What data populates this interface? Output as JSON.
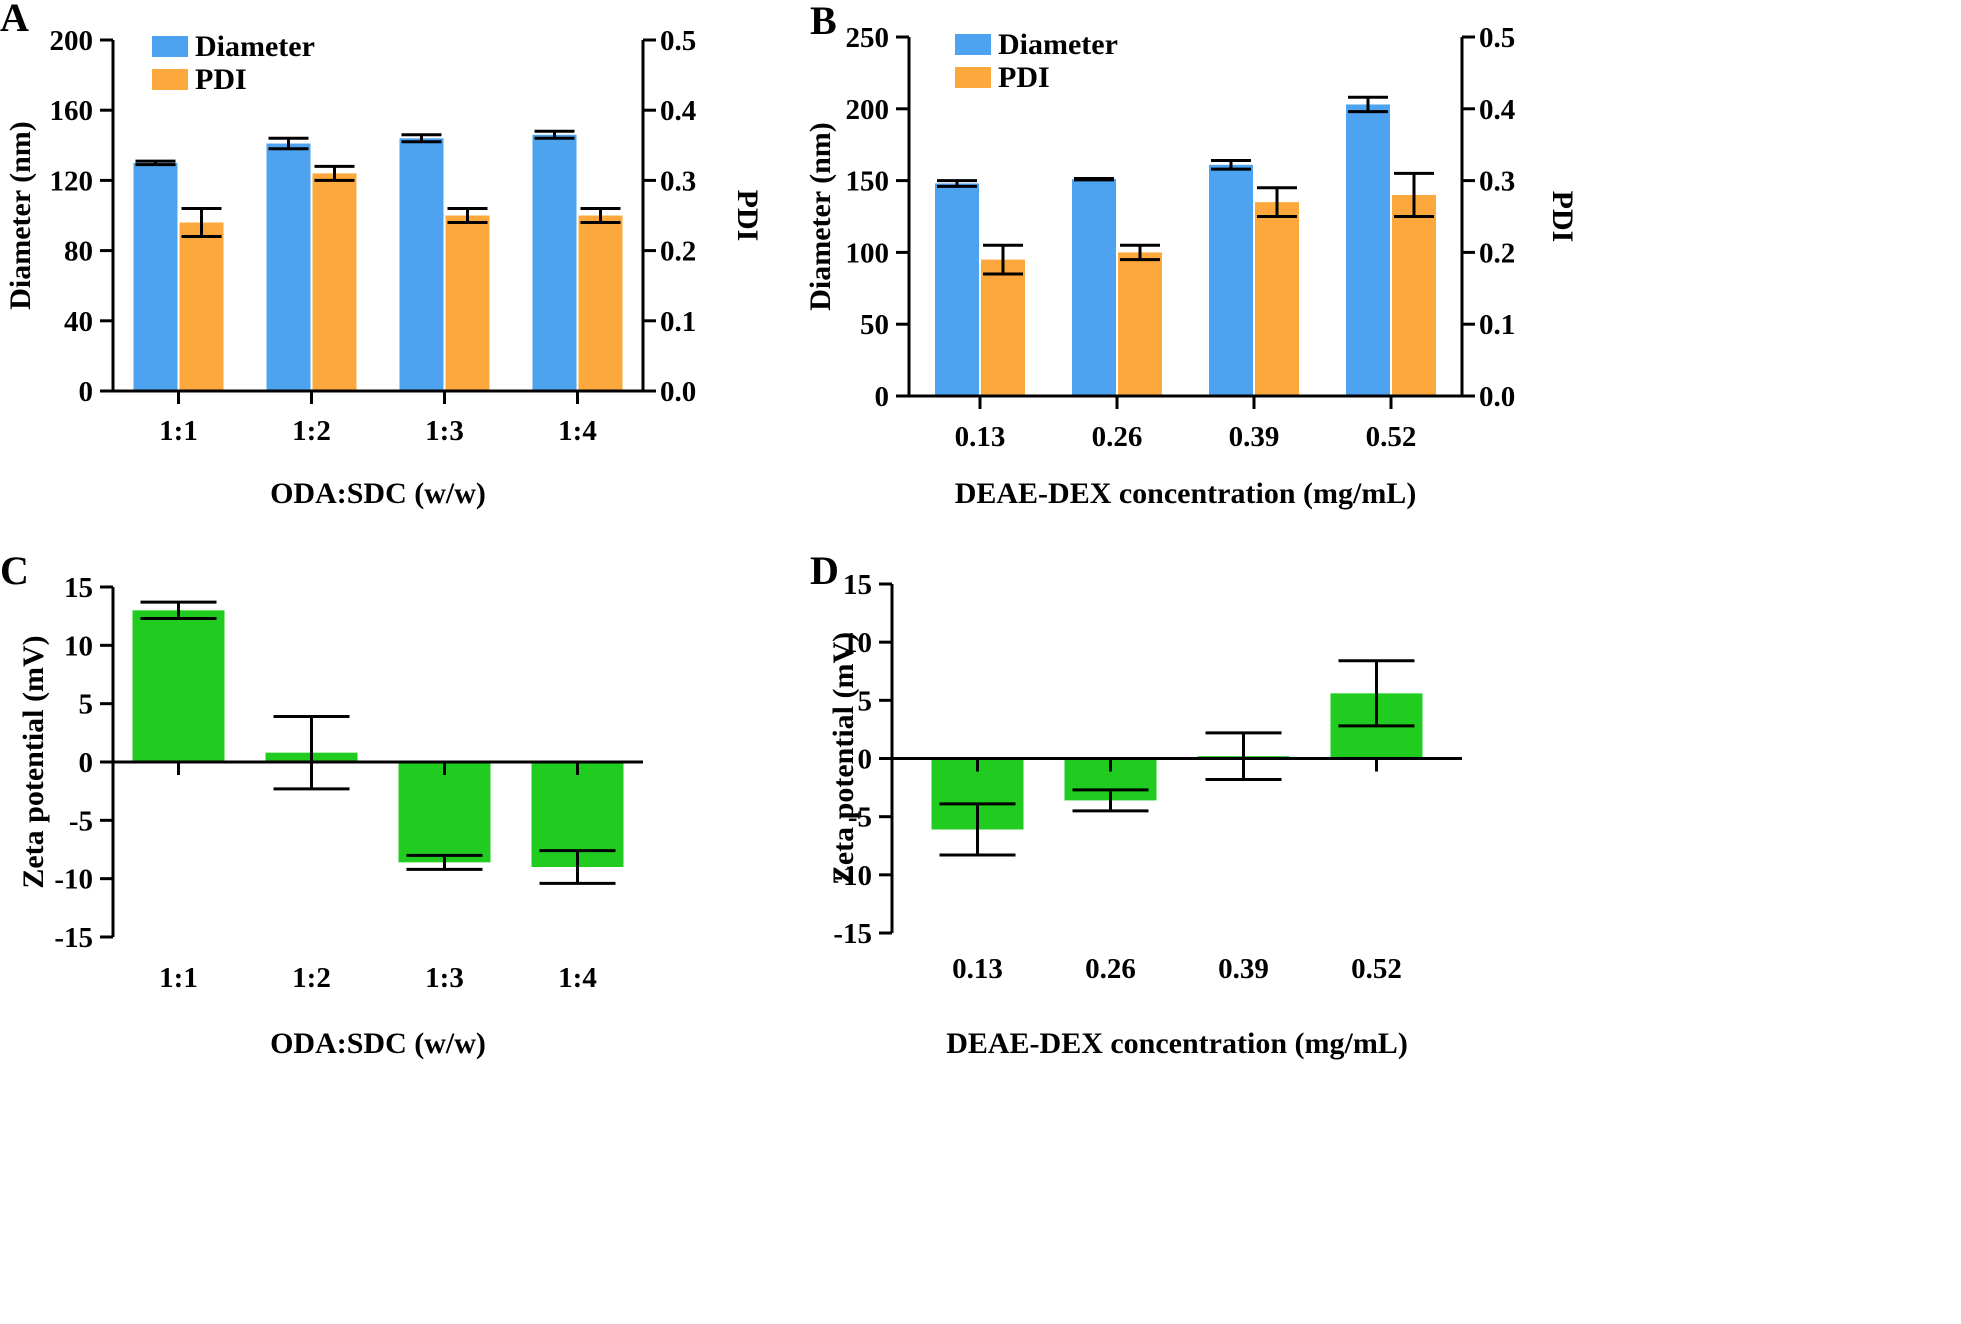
{
  "colors": {
    "diameter": "#4da3ef",
    "pdi": "#fda83c",
    "zeta": "#1fcc1f",
    "axis": "#000000"
  },
  "chart_data": [
    {
      "panel": "A",
      "type": "bar",
      "categories": [
        "1:1",
        "1:2",
        "1:3",
        "1:4"
      ],
      "xlabel": "ODA:SDC (w/w)",
      "ylabel": "Diameter (nm)",
      "ylabel_right": "PDI",
      "ylim": [
        0,
        200
      ],
      "yticks": [
        0,
        40,
        80,
        120,
        160,
        200
      ],
      "ylim_right": [
        0,
        0.5
      ],
      "yticks_right": [
        "0.0",
        "0.1",
        "0.2",
        "0.3",
        "0.4",
        "0.5"
      ],
      "legend": [
        "Diameter",
        "PDI"
      ],
      "series": [
        {
          "name": "Diameter",
          "axis": "left",
          "values": [
            130,
            141,
            144,
            146
          ],
          "errors": [
            1,
            3,
            2,
            2
          ]
        },
        {
          "name": "PDI",
          "axis": "right",
          "values": [
            0.24,
            0.31,
            0.25,
            0.25
          ],
          "errors": [
            0.02,
            0.01,
            0.01,
            0.01
          ]
        }
      ]
    },
    {
      "panel": "B",
      "type": "bar",
      "categories": [
        "0.13",
        "0.26",
        "0.39",
        "0.52"
      ],
      "xlabel": "DEAE-DEX concentration (mg/mL)",
      "ylabel": "Diameter (nm)",
      "ylabel_right": "PDI",
      "ylim": [
        0,
        250
      ],
      "yticks": [
        0,
        50,
        100,
        150,
        200,
        250
      ],
      "ylim_right": [
        0,
        0.5
      ],
      "yticks_right": [
        "0.0",
        "0.1",
        "0.2",
        "0.3",
        "0.4",
        "0.5"
      ],
      "legend": [
        "Diameter",
        "PDI"
      ],
      "series": [
        {
          "name": "Diameter",
          "axis": "left",
          "values": [
            148,
            151,
            161,
            203
          ],
          "errors": [
            2,
            0.5,
            3,
            5
          ]
        },
        {
          "name": "PDI",
          "axis": "right",
          "values": [
            0.19,
            0.2,
            0.27,
            0.28
          ],
          "errors": [
            0.02,
            0.01,
            0.02,
            0.03
          ]
        }
      ]
    },
    {
      "panel": "C",
      "type": "bar",
      "categories": [
        "1:1",
        "1:2",
        "1:3",
        "1:4"
      ],
      "xlabel": "ODA:SDC (w/w)",
      "ylabel": "Zeta potential (mV)",
      "ylim": [
        -15,
        15
      ],
      "yticks": [
        -15,
        -10,
        -5,
        0,
        5,
        10,
        15
      ],
      "series": [
        {
          "name": "Zeta potential",
          "values": [
            13.0,
            0.8,
            -8.6,
            -9.0
          ],
          "errors": [
            0.7,
            3.1,
            0.6,
            1.4
          ]
        }
      ]
    },
    {
      "panel": "D",
      "type": "bar",
      "categories": [
        "0.13",
        "0.26",
        "0.39",
        "0.52"
      ],
      "xlabel": "DEAE-DEX concentration (mg/mL)",
      "ylabel": "Zeta potential (mV)",
      "ylim": [
        -15,
        15
      ],
      "yticks": [
        -15,
        -10,
        -5,
        0,
        5,
        10,
        15
      ],
      "series": [
        {
          "name": "Zeta potential",
          "values": [
            -6.1,
            -3.6,
            0.2,
            5.6
          ],
          "errors": [
            2.2,
            0.9,
            2.0,
            2.8
          ]
        }
      ]
    }
  ]
}
